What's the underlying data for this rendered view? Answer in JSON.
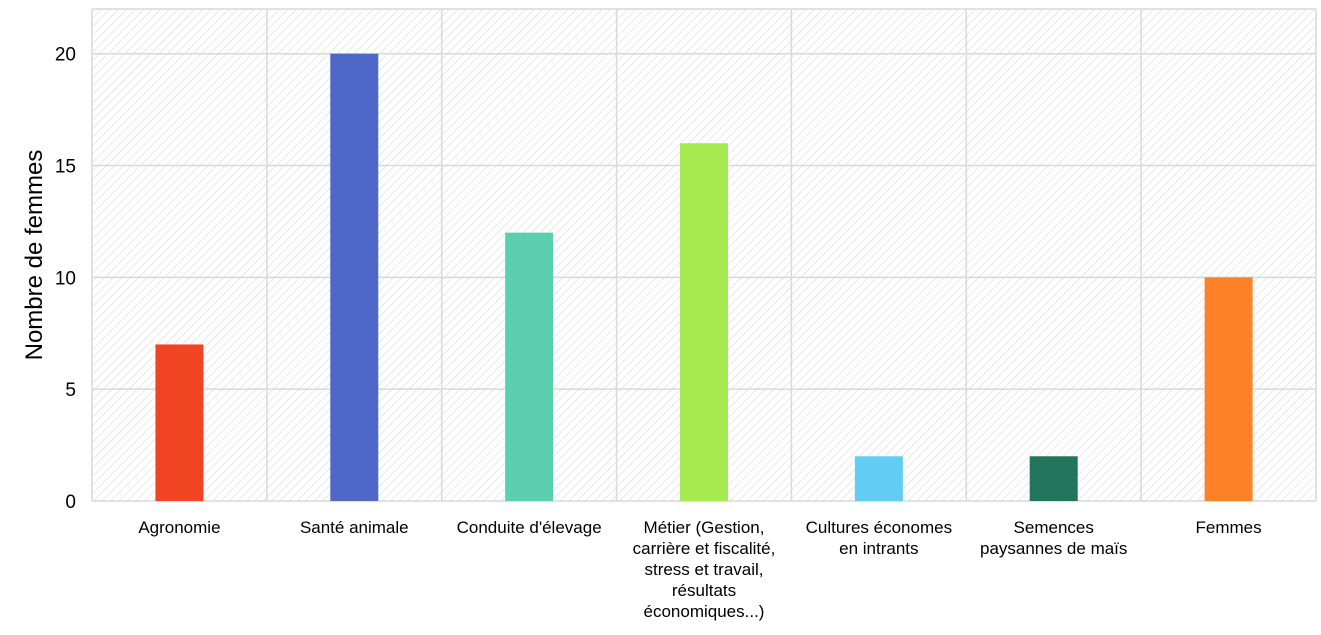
{
  "chart_data": {
    "type": "bar",
    "categories": [
      "Agronomie",
      "Santé animale",
      "Conduite d'élevage",
      "Métier (Gestion, carrière et fiscalité, stress et travail, résultats économiques...)",
      "Cultures économes en intrants",
      "Semences paysannes de maïs",
      "Femmes"
    ],
    "values": [
      7,
      20,
      12,
      16,
      2,
      2,
      10
    ],
    "colors": [
      "#f04423",
      "#4f67c6",
      "#5ccfb1",
      "#a8ea52",
      "#62ccf2",
      "#22745d",
      "#fe8127"
    ],
    "title": "",
    "xlabel": "",
    "ylabel": "Nombre de femmes",
    "ylim": [
      0,
      22
    ],
    "yticks": [
      0,
      5,
      10,
      15,
      20
    ],
    "grid": true
  }
}
